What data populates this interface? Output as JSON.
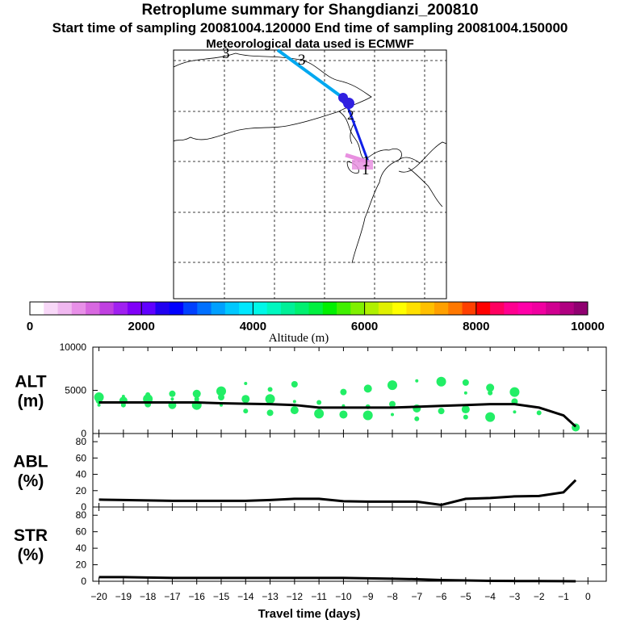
{
  "header": {
    "title": "Retroplume summary for Shangdianzi_200810",
    "sampling": "Start time of sampling 20081004.120000     End time of sampling 20081004.150000",
    "met": "Meteorological data used is ECMWF"
  },
  "map": {
    "labels": [
      "3",
      "3",
      "2",
      "1",
      "1"
    ]
  },
  "colorbar": {
    "ticks": [
      "0",
      "2000",
      "4000",
      "6000",
      "8000",
      "10000"
    ],
    "label": "Altitude (m)",
    "colors": [
      "#ffffff",
      "#f8d8f8",
      "#f0b8f0",
      "#e890e8",
      "#d868e0",
      "#c040e0",
      "#a020f0",
      "#8000f8",
      "#6000ff",
      "#2000f0",
      "#0000ff",
      "#0040ff",
      "#0070ff",
      "#00a0ff",
      "#00c8ff",
      "#00e8ff",
      "#00f8e8",
      "#00f8c0",
      "#00f098",
      "#00f070",
      "#00f040",
      "#00f000",
      "#40f000",
      "#80f000",
      "#b0f000",
      "#e0f000",
      "#ffff00",
      "#ffe000",
      "#ffc000",
      "#ffa000",
      "#ff7800",
      "#ff4000",
      "#ff0000",
      "#ff0060",
      "#ff0090",
      "#ff00a8",
      "#f000a0",
      "#d00090",
      "#b00080",
      "#900070"
    ]
  },
  "chart_data": [
    {
      "type": "line",
      "name": "ALT",
      "ylabel": "ALT (m)",
      "ylabel_lines": [
        "ALT",
        "(m)"
      ],
      "ylim": [
        0,
        10000
      ],
      "yticks": [
        "10000",
        "5000",
        "0"
      ],
      "ytick_values": [
        10000,
        5000,
        0
      ],
      "xlim": [
        -20.25,
        0.75
      ],
      "x": [
        -20,
        -19,
        -18,
        -17,
        -16,
        -15,
        -14,
        -13,
        -12,
        -11,
        -10,
        -9,
        -8,
        -7,
        -6,
        -5,
        -4,
        -3,
        -2,
        -1,
        -0.5
      ],
      "values": [
        3600,
        3600,
        3600,
        3600,
        3600,
        3500,
        3450,
        3400,
        3300,
        3000,
        3000,
        3000,
        3000,
        3100,
        3200,
        3300,
        3400,
        3400,
        3000,
        2100,
        800
      ],
      "scatter": [
        [
          -20,
          3300
        ],
        [
          -20,
          3800
        ],
        [
          -20,
          4200
        ],
        [
          -19,
          3300
        ],
        [
          -19,
          3800
        ],
        [
          -19,
          4300
        ],
        [
          -18,
          3400
        ],
        [
          -18,
          4000
        ],
        [
          -18,
          4500
        ],
        [
          -17,
          3300
        ],
        [
          -17,
          4000
        ],
        [
          -17,
          4600
        ],
        [
          -16,
          3300
        ],
        [
          -16,
          4000
        ],
        [
          -16,
          4600
        ],
        [
          -15,
          3300
        ],
        [
          -15,
          4200
        ],
        [
          -15,
          4900
        ],
        [
          -14,
          2600
        ],
        [
          -14,
          4000
        ],
        [
          -14,
          5800
        ],
        [
          -13,
          2400
        ],
        [
          -13,
          4000
        ],
        [
          -13,
          5100
        ],
        [
          -12,
          2700
        ],
        [
          -12,
          3700
        ],
        [
          -12,
          5700
        ],
        [
          -11,
          2300
        ],
        [
          -11,
          3600
        ],
        [
          -10,
          2200
        ],
        [
          -10,
          3200
        ],
        [
          -10,
          4800
        ],
        [
          -9,
          2100
        ],
        [
          -9,
          3100
        ],
        [
          -9,
          5200
        ],
        [
          -8,
          2200
        ],
        [
          -8,
          3400
        ],
        [
          -8,
          5600
        ],
        [
          -7,
          1700
        ],
        [
          -7,
          2900
        ],
        [
          -7,
          6100
        ],
        [
          -6,
          2600
        ],
        [
          -6,
          6000
        ],
        [
          -5,
          1900
        ],
        [
          -5,
          2800
        ],
        [
          -5,
          4700
        ],
        [
          -5,
          5900
        ],
        [
          -4,
          1900
        ],
        [
          -4,
          4700
        ],
        [
          -4,
          5300
        ],
        [
          -3,
          2500
        ],
        [
          -3,
          3700
        ],
        [
          -3,
          4800
        ],
        [
          -2,
          2400
        ],
        [
          -0.5,
          700
        ]
      ],
      "scatter_color": "#22ee66",
      "line_color": "#000000"
    },
    {
      "type": "line",
      "name": "ABL",
      "ylabel": "ABL (%)",
      "ylabel_lines": [
        "ABL",
        "(%)"
      ],
      "ylim": [
        0,
        90
      ],
      "yticks": [
        "80",
        "60",
        "40",
        "20",
        "0"
      ],
      "ytick_values": [
        80,
        60,
        40,
        20,
        0
      ],
      "xlim": [
        -20.25,
        0.75
      ],
      "x": [
        -20,
        -19,
        -18,
        -17,
        -16,
        -15,
        -14,
        -13,
        -12,
        -11,
        -10,
        -9,
        -8,
        -7,
        -6,
        -5,
        -4,
        -3,
        -2,
        -1,
        -0.5
      ],
      "values": [
        9,
        8.5,
        8,
        7.5,
        7.5,
        7.5,
        7.5,
        8.5,
        10,
        10,
        7,
        6.5,
        6.5,
        6.5,
        2.5,
        10,
        11,
        13,
        13.5,
        18,
        33
      ],
      "line_color": "#000000"
    },
    {
      "type": "line",
      "name": "STR",
      "ylabel": "STR (%)",
      "ylabel_lines": [
        "STR",
        "(%)"
      ],
      "ylim": [
        0,
        90
      ],
      "yticks": [
        "80",
        "60",
        "40",
        "20",
        "0"
      ],
      "ytick_values": [
        80,
        60,
        40,
        20,
        0
      ],
      "xlim": [
        -20.25,
        0.75
      ],
      "x": [
        -20,
        -19,
        -18,
        -17,
        -16,
        -15,
        -14,
        -13,
        -12,
        -11,
        -10,
        -9,
        -8,
        -7,
        -6,
        -5,
        -4,
        -3,
        -2,
        -1,
        -0.5
      ],
      "values": [
        5,
        5,
        4.5,
        4,
        4,
        4,
        4,
        4,
        4,
        4,
        4,
        3.5,
        3,
        2.5,
        1.5,
        1,
        0.5,
        0.3,
        0.2,
        0.1,
        0
      ],
      "xlabel": "Travel time (days)",
      "xticks": [
        "−20",
        "−19",
        "−18",
        "−17",
        "−16",
        "−15",
        "−14",
        "−13",
        "−12",
        "−11",
        "−10",
        "−9",
        "−8",
        "−7",
        "−6",
        "−5",
        "−4",
        "−3",
        "−2",
        "−1",
        "0"
      ],
      "xtick_values": [
        -20,
        -19,
        -18,
        -17,
        -16,
        -15,
        -14,
        -13,
        -12,
        -11,
        -10,
        -9,
        -8,
        -7,
        -6,
        -5,
        -4,
        -3,
        -2,
        -1,
        0
      ],
      "line_color": "#000000"
    }
  ]
}
